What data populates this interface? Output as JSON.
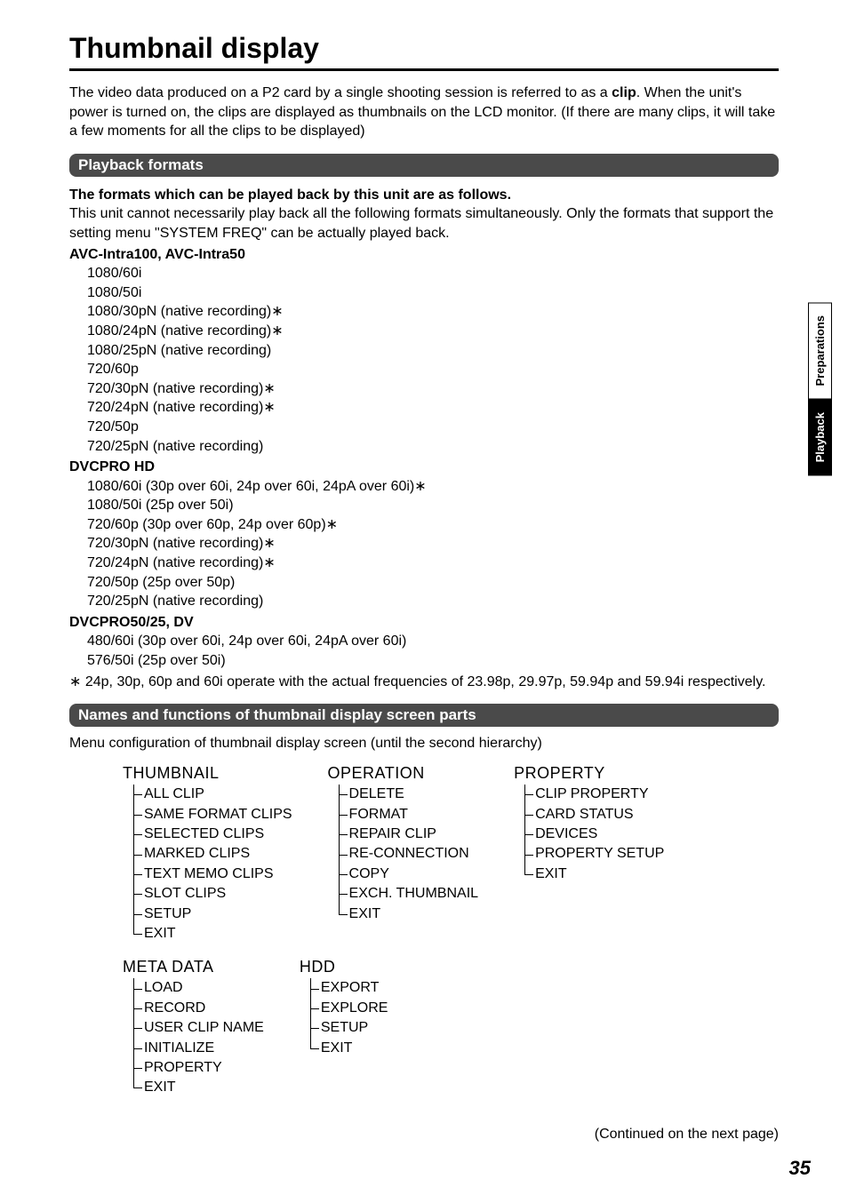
{
  "page": {
    "title": "Thumbnail display",
    "intro_before": "The video data produced on a P2 card by a single shooting session is referred to as a ",
    "intro_bold": "clip",
    "intro_after": ". When the unit's power is turned on, the clips are displayed as thumbnails on the LCD monitor. (If there are many clips, it will take a few moments for all the clips to be displayed)"
  },
  "section1": {
    "header": "Playback formats",
    "line1_bold": "The formats which can be played back by this unit are as follows.",
    "line2": "This unit cannot necessarily play back all the following formats simultaneously. Only the formats that support the setting menu \"SYSTEM FREQ\" can be actually played back.",
    "groups": [
      {
        "title": "AVC-Intra100, AVC-Intra50",
        "items": [
          "1080/60i",
          "1080/50i",
          "1080/30pN (native recording)∗",
          "1080/24pN (native recording)∗",
          "1080/25pN (native recording)",
          "720/60p",
          "720/30pN (native recording)∗",
          "720/24pN (native recording)∗",
          "720/50p",
          "720/25pN (native recording)"
        ]
      },
      {
        "title": "DVCPRO HD",
        "items": [
          "1080/60i (30p over 60i, 24p over 60i, 24pA over 60i)∗",
          "1080/50i (25p over 50i)",
          "720/60p (30p over 60p, 24p over 60p)∗",
          "720/30pN (native recording)∗",
          "720/24pN (native recording)∗",
          "720/50p (25p over 50p)",
          "720/25pN (native recording)"
        ]
      },
      {
        "title": "DVCPRO50/25, DV",
        "items": [
          "480/60i (30p over 60i, 24p over 60i, 24pA over 60i)",
          "576/50i (25p over 50i)"
        ]
      }
    ],
    "footnote": "∗ 24p, 30p, 60p and 60i operate with the actual frequencies of 23.98p, 29.97p, 59.94p and 59.94i respectively."
  },
  "section2": {
    "header": "Names and functions of thumbnail display screen parts",
    "intro": "Menu configuration of thumbnail display screen (until the second hierarchy)",
    "row1": [
      {
        "title": "THUMBNAIL",
        "items": [
          "ALL CLIP",
          "SAME FORMAT CLIPS",
          "SELECTED CLIPS",
          "MARKED CLIPS",
          "TEXT MEMO CLIPS",
          "SLOT CLIPS",
          "SETUP",
          "EXIT"
        ]
      },
      {
        "title": "OPERATION",
        "items": [
          "DELETE",
          "FORMAT",
          "REPAIR CLIP",
          "RE-CONNECTION",
          "COPY",
          "EXCH. THUMBNAIL",
          "EXIT"
        ]
      },
      {
        "title": "PROPERTY",
        "items": [
          "CLIP PROPERTY",
          "CARD STATUS",
          "DEVICES",
          "PROPERTY SETUP",
          "EXIT"
        ]
      }
    ],
    "row2": [
      {
        "title": "META DATA",
        "items": [
          "LOAD",
          "RECORD",
          "USER CLIP NAME",
          "INITIALIZE",
          "PROPERTY",
          "EXIT"
        ]
      },
      {
        "title": "HDD",
        "items": [
          "EXPORT",
          "EXPLORE",
          "SETUP",
          "EXIT"
        ]
      }
    ]
  },
  "tabs": {
    "top": "Preparations",
    "bottom": "Playback"
  },
  "continued": "(Continued on the next page)",
  "page_number": "35"
}
